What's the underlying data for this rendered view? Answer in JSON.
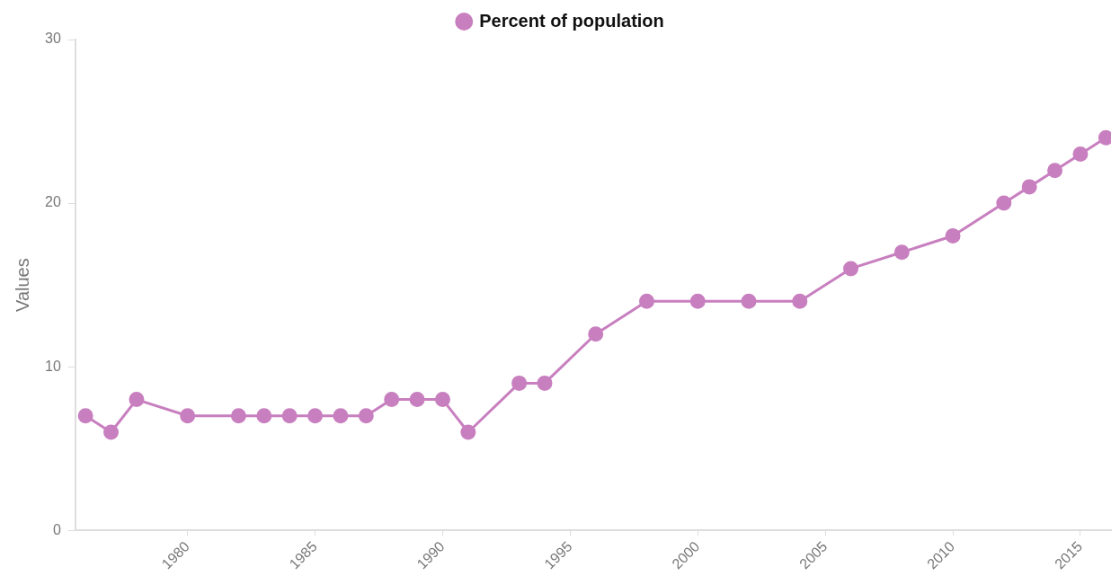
{
  "chart_data": {
    "type": "line",
    "ylabel": "Values",
    "legend": "top",
    "marker": "circle",
    "grid": false,
    "x": [
      1976,
      1977,
      1978,
      1980,
      1982,
      1983,
      1984,
      1985,
      1986,
      1987,
      1988,
      1989,
      1990,
      1991,
      1993,
      1994,
      1996,
      1998,
      2000,
      2002,
      2004,
      2006,
      2008,
      2010,
      2012,
      2013,
      2014,
      2015,
      2016
    ],
    "series": [
      {
        "name": "Percent of population",
        "color": "#c87fbf",
        "values": [
          7,
          6,
          8,
          7,
          7,
          7,
          7,
          7,
          7,
          7,
          8,
          8,
          8,
          6,
          9,
          9,
          12,
          14,
          14,
          14,
          14,
          16,
          17,
          18,
          20,
          21,
          22,
          23,
          24
        ]
      }
    ],
    "xlim": [
      1975.6,
      2016.2
    ],
    "xticks": [
      1980,
      1985,
      1990,
      1995,
      2000,
      2005,
      2010,
      2015
    ],
    "ylim": [
      0,
      30
    ],
    "yticks": [
      0,
      10,
      20,
      30
    ]
  }
}
